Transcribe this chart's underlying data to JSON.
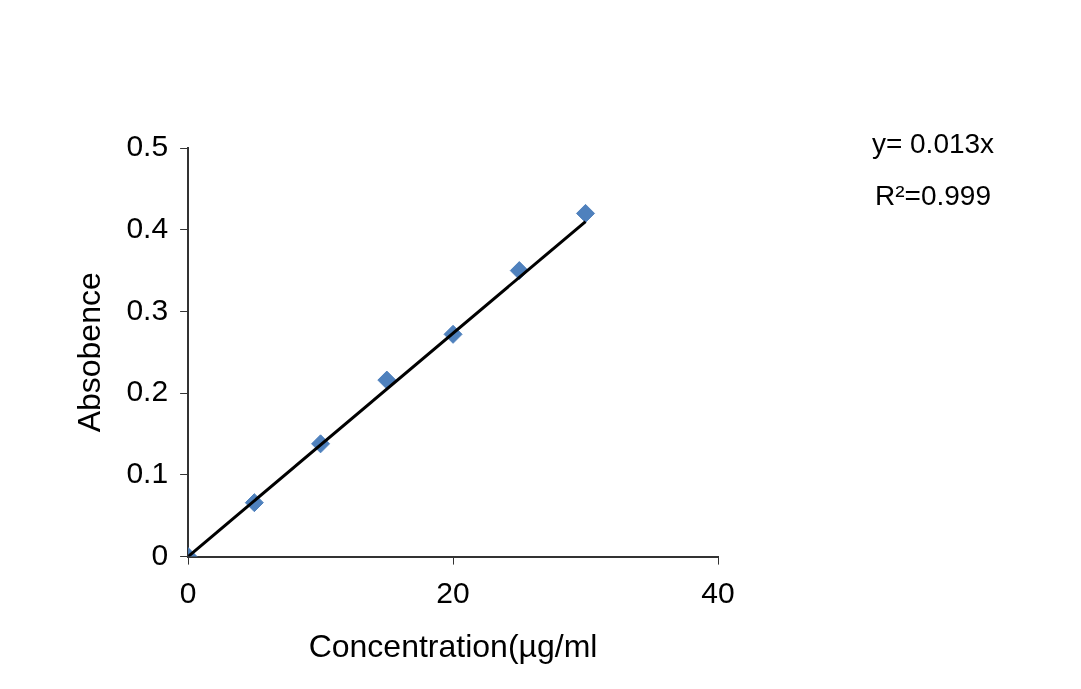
{
  "chart_data": {
    "type": "scatter",
    "xlabel": "Concentration(µg/ml",
    "ylabel": "Absobence",
    "xlim": [
      0,
      40
    ],
    "xticks": [
      0,
      20,
      40
    ],
    "ylim": [
      0,
      0.5
    ],
    "yticks": [
      0,
      0.1,
      0.2,
      0.3,
      0.4,
      0.5
    ],
    "grid": false,
    "legend": false,
    "series": [
      {
        "type": "scatter",
        "color": "#4f81bd",
        "marker": "diamond",
        "x": [
          0,
          5,
          10,
          15,
          20,
          25,
          30
        ],
        "values": [
          0,
          0.066,
          0.138,
          0.216,
          0.272,
          0.35,
          0.42
        ]
      },
      {
        "type": "line",
        "color": "#000000",
        "marker": "none",
        "line_style": "solid",
        "x": [
          0,
          30
        ],
        "values": [
          0,
          0.41
        ]
      }
    ],
    "annotations": [
      "y= 0.013x",
      "R²=0.999"
    ]
  }
}
